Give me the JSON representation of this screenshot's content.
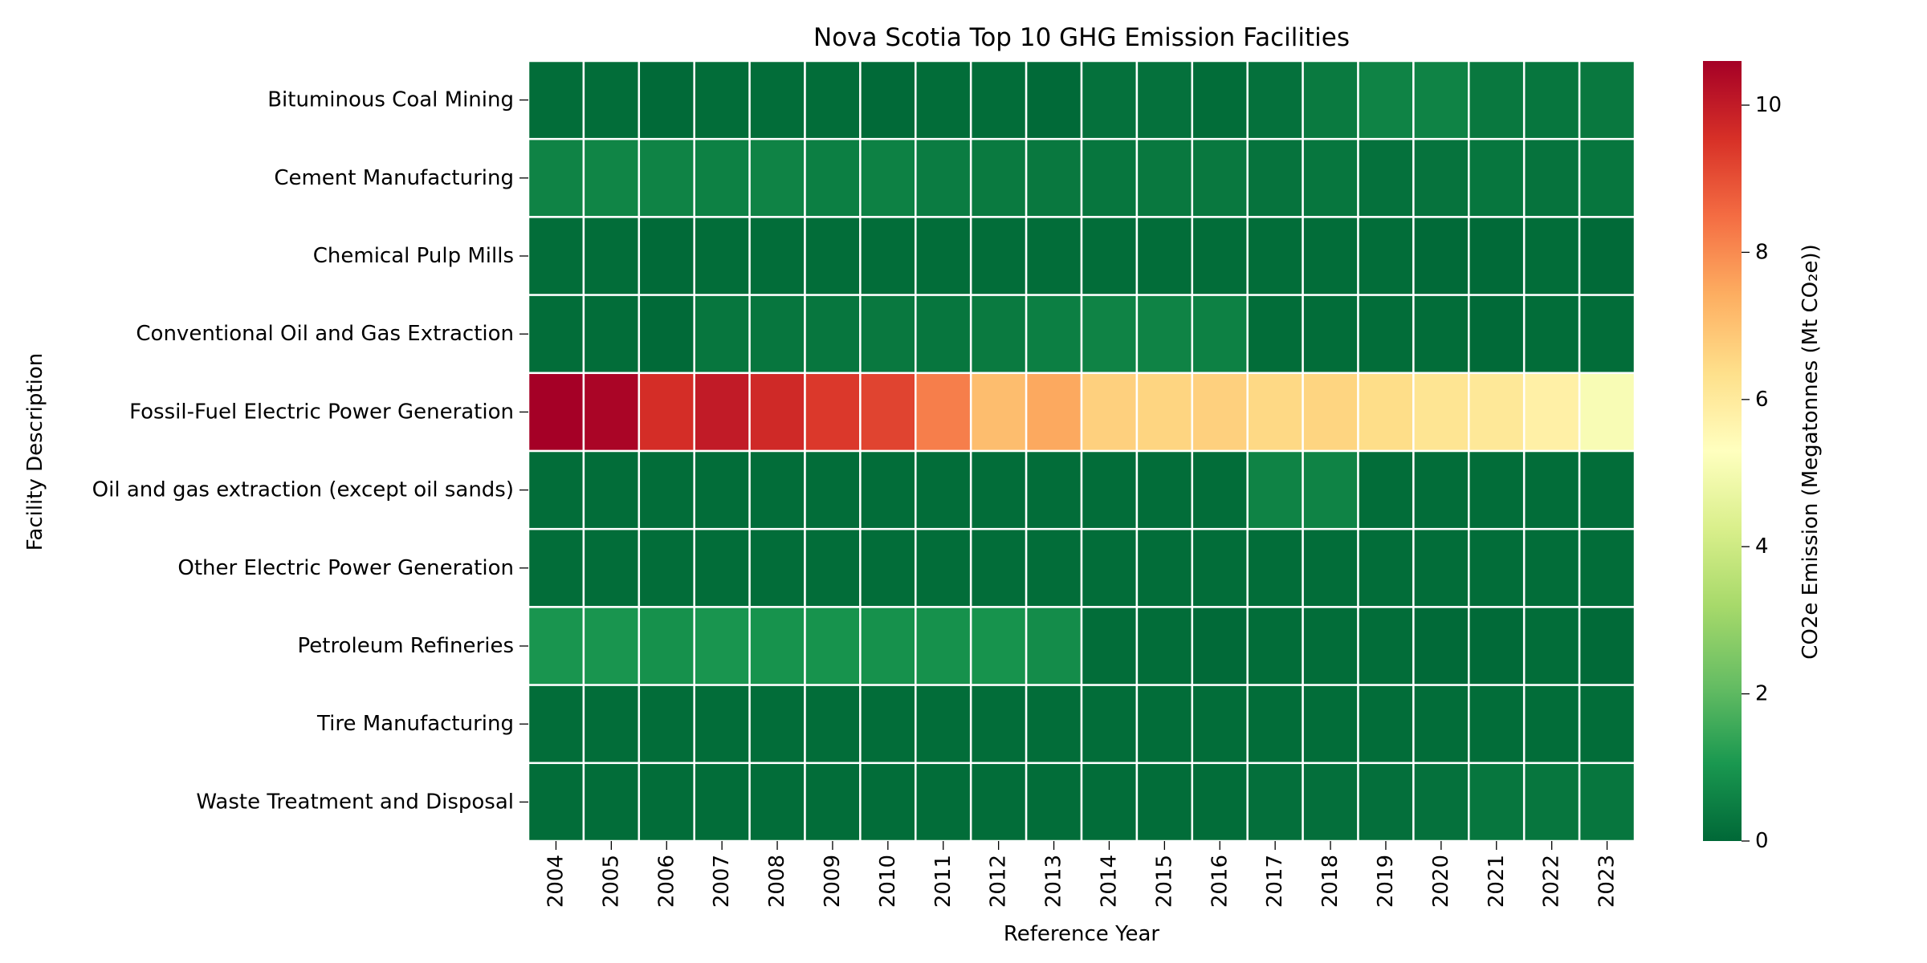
{
  "chart_data": {
    "type": "heatmap",
    "title": "Nova Scotia Top 10 GHG Emission Facilities",
    "xlabel": "Reference Year",
    "ylabel": "Facility Description",
    "colorbar_label": "CO2e Emission (Megatonnes (Mt CO₂e))",
    "colormap": "RdYlGn_r",
    "vmin": 0,
    "vmax": 10.6,
    "colorbar_ticks": [
      0,
      2,
      4,
      6,
      8,
      10
    ],
    "years": [
      "2004",
      "2005",
      "2006",
      "2007",
      "2008",
      "2009",
      "2010",
      "2011",
      "2012",
      "2013",
      "2014",
      "2015",
      "2016",
      "2017",
      "2018",
      "2019",
      "2020",
      "2021",
      "2022",
      "2023"
    ],
    "facilities": [
      "Bituminous Coal Mining",
      "Cement Manufacturing",
      "Chemical Pulp Mills",
      "Conventional Oil and Gas Extraction",
      "Fossil-Fuel Electric Power Generation",
      "Oil and gas extraction (except oil sands)",
      "Other Electric Power Generation",
      "Petroleum Refineries",
      "Tire Manufacturing",
      "Waste Treatment and Disposal"
    ],
    "values": [
      [
        0.1,
        0.1,
        0.05,
        0.1,
        0.1,
        0.1,
        0.05,
        0.1,
        0.1,
        0.05,
        0.2,
        0.2,
        0.1,
        0.2,
        0.4,
        0.6,
        0.6,
        0.35,
        0.3,
        0.35
      ],
      [
        0.6,
        0.65,
        0.6,
        0.55,
        0.6,
        0.5,
        0.55,
        0.45,
        0.4,
        0.35,
        0.3,
        0.35,
        0.35,
        0.25,
        0.3,
        0.2,
        0.25,
        0.3,
        0.25,
        0.3
      ],
      [
        0.1,
        0.1,
        0.05,
        0.1,
        0.1,
        0.1,
        0.1,
        0.1,
        0.1,
        0.1,
        0.1,
        0.1,
        0.1,
        0.1,
        0.1,
        0.1,
        0.05,
        0.05,
        0.1,
        0.05
      ],
      [
        0.1,
        0.1,
        0.05,
        0.3,
        0.3,
        0.3,
        0.35,
        0.3,
        0.4,
        0.5,
        0.6,
        0.6,
        0.55,
        0.1,
        0.1,
        0.1,
        0.1,
        0.05,
        0.1,
        0.1
      ],
      [
        10.6,
        10.5,
        9.6,
        10.0,
        9.7,
        9.4,
        9.2,
        8.2,
        7.1,
        7.5,
        6.7,
        6.6,
        6.7,
        6.5,
        6.6,
        6.4,
        6.2,
        6.1,
        5.8,
        5.1
      ],
      [
        0.1,
        0.1,
        0.1,
        0.1,
        0.1,
        0.1,
        0.1,
        0.1,
        0.1,
        0.1,
        0.1,
        0.1,
        0.1,
        0.6,
        0.6,
        0.1,
        0.1,
        0.1,
        0.1,
        0.1
      ],
      [
        0.1,
        0.1,
        0.1,
        0.1,
        0.1,
        0.1,
        0.1,
        0.1,
        0.1,
        0.1,
        0.1,
        0.1,
        0.1,
        0.1,
        0.1,
        0.1,
        0.1,
        0.1,
        0.1,
        0.1
      ],
      [
        1.0,
        1.0,
        0.9,
        1.0,
        0.95,
        0.95,
        0.9,
        0.9,
        0.95,
        0.8,
        0.1,
        0.1,
        0.05,
        0.1,
        0.1,
        0.1,
        0.05,
        0.05,
        0.1,
        0.05
      ],
      [
        0.1,
        0.1,
        0.1,
        0.1,
        0.1,
        0.1,
        0.1,
        0.1,
        0.1,
        0.1,
        0.1,
        0.1,
        0.1,
        0.1,
        0.1,
        0.1,
        0.1,
        0.1,
        0.1,
        0.1
      ],
      [
        0.1,
        0.1,
        0.1,
        0.1,
        0.1,
        0.1,
        0.1,
        0.1,
        0.1,
        0.1,
        0.1,
        0.1,
        0.1,
        0.15,
        0.15,
        0.15,
        0.2,
        0.3,
        0.3,
        0.3
      ]
    ]
  }
}
